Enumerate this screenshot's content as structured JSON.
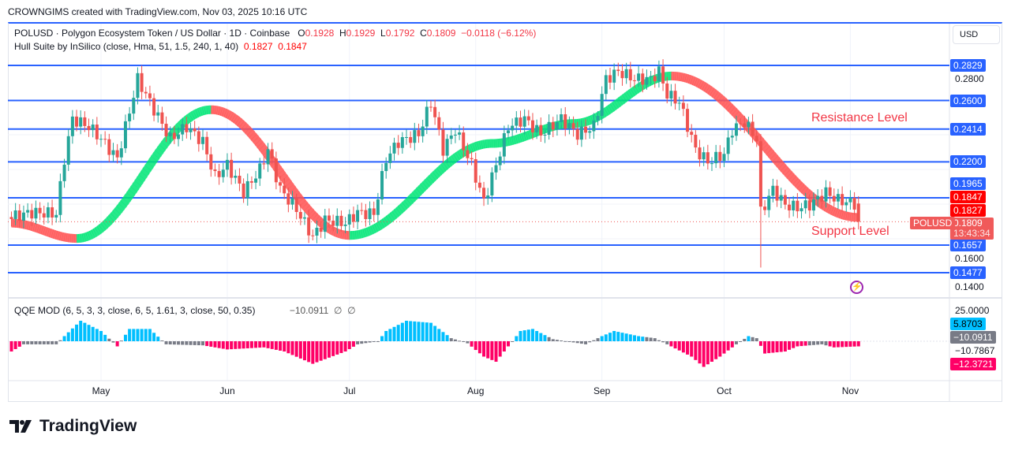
{
  "credit": "CROWNGIMS created with TradingView.com, Nov 03, 2025 10:16 UTC",
  "legend": {
    "symbol": "POLUSD · Polygon Ecosystem Token / US Dollar · 1D · Coinbase",
    "o_label": "O",
    "o": "0.1928",
    "h_label": "H",
    "h": "0.1929",
    "l_label": "L",
    "l": "0.1792",
    "c_label": "C",
    "c": "0.1809",
    "change": "−0.0118 (−6.12%)"
  },
  "hull_legend": {
    "name": "Hull Suite by InSilico (close, Hma, 51, 1.5, 240, 1, 40)",
    "v1": "0.1827",
    "v2": "0.1847"
  },
  "qqe_legend": {
    "name": "QQE MOD (6, 5, 3, 3, close, 6, 5, 1.61, 3, close, 50, 0.35)",
    "value": "−10.0911",
    "n1": "∅",
    "n2": "∅"
  },
  "currency": "USD",
  "annotations": {
    "resistance": "Resistance Level",
    "support": "Support Level"
  },
  "symbol_tag": "POLUSD",
  "countdown": "13:43:34",
  "colors": {
    "up": "#26a69a",
    "down": "#ef5350",
    "level": "#2962ff",
    "hull_up": "#00e676",
    "hull_down": "#ff5252",
    "qqe_up": "#00bfff",
    "qqe_down": "#ff0066",
    "qqe_neutral": "#787b86"
  },
  "logo": "TradingView",
  "chart_data": {
    "type": "candlestick",
    "x_ticks": [
      "May",
      "Jun",
      "Jul",
      "Aug",
      "Sep",
      "Oct",
      "Nov"
    ],
    "x_tick_dates": [
      "2025-05-01",
      "2025-06-01",
      "2025-07-01",
      "2025-08-01",
      "2025-09-01",
      "2025-10-01",
      "2025-11-01"
    ],
    "ylim": [
      0.135,
      0.3
    ],
    "y_ticks": [
      "0.2800",
      "0.1600",
      "0.1400"
    ],
    "levels": [
      "0.2829",
      "0.2600",
      "0.2414",
      "0.2200",
      "0.1965",
      "0.1657",
      "0.1477"
    ],
    "price_tags": {
      "hull_upper": "0.1847",
      "hull_lower": "0.1827",
      "last": "0.1809"
    },
    "close_keypoints": [
      [
        "2025-04-09",
        0.184
      ],
      [
        "2025-04-14",
        0.187
      ],
      [
        "2025-04-20",
        0.186
      ],
      [
        "2025-04-22",
        0.222
      ],
      [
        "2025-04-24",
        0.248
      ],
      [
        "2025-04-28",
        0.243
      ],
      [
        "2025-05-01",
        0.235
      ],
      [
        "2025-05-05",
        0.222
      ],
      [
        "2025-05-08",
        0.253
      ],
      [
        "2025-05-10",
        0.274
      ],
      [
        "2025-05-13",
        0.259
      ],
      [
        "2025-05-18",
        0.235
      ],
      [
        "2025-05-22",
        0.243
      ],
      [
        "2025-05-26",
        0.233
      ],
      [
        "2025-05-29",
        0.21
      ],
      [
        "2025-06-01",
        0.218
      ],
      [
        "2025-06-05",
        0.2
      ],
      [
        "2025-06-09",
        0.215
      ],
      [
        "2025-06-11",
        0.228
      ],
      [
        "2025-06-14",
        0.202
      ],
      [
        "2025-06-18",
        0.189
      ],
      [
        "2025-06-22",
        0.171
      ],
      [
        "2025-06-25",
        0.182
      ],
      [
        "2025-06-30",
        0.18
      ],
      [
        "2025-07-03",
        0.187
      ],
      [
        "2025-07-07",
        0.186
      ],
      [
        "2025-07-10",
        0.222
      ],
      [
        "2025-07-13",
        0.233
      ],
      [
        "2025-07-18",
        0.238
      ],
      [
        "2025-07-21",
        0.259
      ],
      [
        "2025-07-24",
        0.228
      ],
      [
        "2025-07-27",
        0.241
      ],
      [
        "2025-07-31",
        0.218
      ],
      [
        "2025-08-03",
        0.194
      ],
      [
        "2025-08-06",
        0.218
      ],
      [
        "2025-08-09",
        0.243
      ],
      [
        "2025-08-13",
        0.248
      ],
      [
        "2025-08-17",
        0.238
      ],
      [
        "2025-08-22",
        0.248
      ],
      [
        "2025-08-26",
        0.238
      ],
      [
        "2025-08-30",
        0.243
      ],
      [
        "2025-09-02",
        0.274
      ],
      [
        "2025-09-05",
        0.279
      ],
      [
        "2025-09-09",
        0.274
      ],
      [
        "2025-09-13",
        0.274
      ],
      [
        "2025-09-15",
        0.279
      ],
      [
        "2025-09-17",
        0.264
      ],
      [
        "2025-09-20",
        0.259
      ],
      [
        "2025-09-24",
        0.228
      ],
      [
        "2025-09-27",
        0.22
      ],
      [
        "2025-10-01",
        0.225
      ],
      [
        "2025-10-03",
        0.241
      ],
      [
        "2025-10-06",
        0.246
      ],
      [
        "2025-10-09",
        0.235
      ],
      [
        "2025-10-10",
        0.187
      ],
      [
        "2025-10-13",
        0.202
      ],
      [
        "2025-10-16",
        0.192
      ],
      [
        "2025-10-19",
        0.19
      ],
      [
        "2025-10-22",
        0.192
      ],
      [
        "2025-10-26",
        0.2
      ],
      [
        "2025-10-29",
        0.195
      ],
      [
        "2025-11-02",
        0.1928
      ],
      [
        "2025-11-03",
        0.1809
      ]
    ],
    "low_events": [
      [
        "2025-10-10",
        0.151
      ]
    ],
    "hull_keypoints": [
      [
        "2025-04-09",
        0.18
      ],
      [
        "2025-04-25",
        0.17
      ],
      [
        "2025-05-28",
        0.254
      ],
      [
        "2025-07-01",
        0.172
      ],
      [
        "2025-08-05",
        0.232
      ],
      [
        "2025-08-25",
        0.245
      ],
      [
        "2025-09-18",
        0.276
      ],
      [
        "2025-11-03",
        0.1837
      ]
    ],
    "qqe_ylim": [
      -25,
      25
    ],
    "qqe_keypoints": [
      [
        "2025-04-09",
        -10
      ],
      [
        "2025-04-12",
        -3
      ],
      [
        "2025-04-20",
        -3
      ],
      [
        "2025-04-22",
        5
      ],
      [
        "2025-04-26",
        20
      ],
      [
        "2025-05-01",
        10
      ],
      [
        "2025-05-05",
        -5
      ],
      [
        "2025-05-08",
        12
      ],
      [
        "2025-05-13",
        12
      ],
      [
        "2025-05-17",
        -3
      ],
      [
        "2025-05-26",
        -4
      ],
      [
        "2025-06-01",
        -8
      ],
      [
        "2025-06-10",
        -6
      ],
      [
        "2025-06-15",
        -10
      ],
      [
        "2025-06-22",
        -22
      ],
      [
        "2025-06-30",
        -10
      ],
      [
        "2025-07-03",
        -3
      ],
      [
        "2025-07-08",
        0
      ],
      [
        "2025-07-10",
        10
      ],
      [
        "2025-07-15",
        20
      ],
      [
        "2025-07-21",
        18
      ],
      [
        "2025-07-26",
        3
      ],
      [
        "2025-07-30",
        -2
      ],
      [
        "2025-08-03",
        -15
      ],
      [
        "2025-08-06",
        -20
      ],
      [
        "2025-08-09",
        -5
      ],
      [
        "2025-08-12",
        10
      ],
      [
        "2025-08-15",
        12
      ],
      [
        "2025-08-20",
        2
      ],
      [
        "2025-08-28",
        -3
      ],
      [
        "2025-09-01",
        5
      ],
      [
        "2025-09-04",
        10
      ],
      [
        "2025-09-10",
        5
      ],
      [
        "2025-09-14",
        3
      ],
      [
        "2025-09-18",
        -5
      ],
      [
        "2025-09-23",
        -15
      ],
      [
        "2025-09-26",
        -25
      ],
      [
        "2025-09-30",
        -15
      ],
      [
        "2025-10-04",
        -3
      ],
      [
        "2025-10-07",
        5
      ],
      [
        "2025-10-09",
        3
      ],
      [
        "2025-10-11",
        -12
      ],
      [
        "2025-10-16",
        -10
      ],
      [
        "2025-10-19",
        -5
      ],
      [
        "2025-10-25",
        -3
      ],
      [
        "2025-10-28",
        -6
      ],
      [
        "2025-11-03",
        -5
      ]
    ],
    "qqe_axis": {
      "top": "25.0000",
      "blue_tag": "5.8703",
      "gray_tag": "−10.0911",
      "mid": "−10.7867",
      "pink_tag": "−12.3721"
    }
  }
}
